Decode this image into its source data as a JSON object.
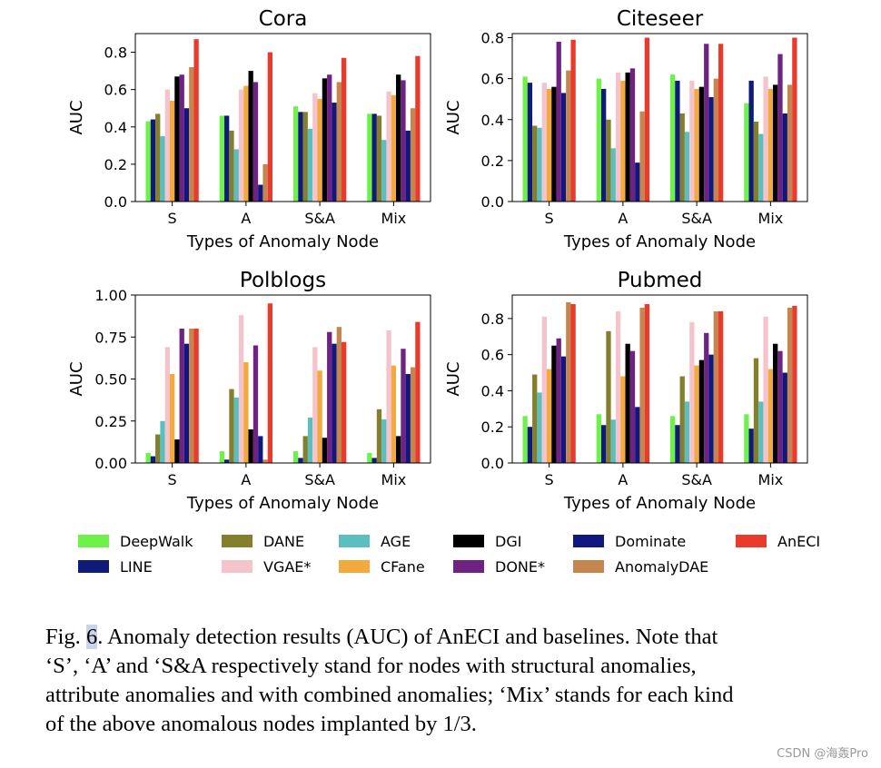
{
  "chart_data": [
    {
      "type": "bar",
      "title": "Cora",
      "xlabel": "Types of Anomaly Node",
      "ylabel": "AUC",
      "ylim": [
        0,
        0.9
      ],
      "yticks": [
        "0.0",
        "0.2",
        "0.4",
        "0.6",
        "0.8"
      ],
      "categories": [
        "S",
        "A",
        "S&A",
        "Mix"
      ],
      "values": [
        [
          0.43,
          0.44,
          0.47,
          0.35,
          0.6,
          0.54,
          0.67,
          0.68,
          0.5,
          0.72,
          0.87
        ],
        [
          0.46,
          0.46,
          0.38,
          0.28,
          0.6,
          0.62,
          0.7,
          0.64,
          0.09,
          0.2,
          0.8
        ],
        [
          0.51,
          0.48,
          0.48,
          0.39,
          0.58,
          0.55,
          0.66,
          0.68,
          0.53,
          0.64,
          0.77
        ],
        [
          0.47,
          0.47,
          0.46,
          0.33,
          0.59,
          0.57,
          0.68,
          0.65,
          0.38,
          0.5,
          0.78
        ]
      ]
    },
    {
      "type": "bar",
      "title": "Citeseer",
      "xlabel": "Types of Anomaly Node",
      "ylabel": "AUC",
      "ylim": [
        0,
        0.82
      ],
      "yticks": [
        "0.0",
        "0.2",
        "0.4",
        "0.6",
        "0.8"
      ],
      "categories": [
        "S",
        "A",
        "S&A",
        "Mix"
      ],
      "values": [
        [
          0.61,
          0.58,
          0.37,
          0.36,
          0.58,
          0.55,
          0.56,
          0.78,
          0.53,
          0.64,
          0.79
        ],
        [
          0.6,
          0.55,
          0.4,
          0.26,
          0.63,
          0.59,
          0.63,
          0.65,
          0.19,
          0.44,
          0.8
        ],
        [
          0.62,
          0.59,
          0.43,
          0.34,
          0.59,
          0.55,
          0.56,
          0.77,
          0.51,
          0.6,
          0.77
        ],
        [
          0.48,
          0.59,
          0.39,
          0.33,
          0.61,
          0.55,
          0.57,
          0.72,
          0.43,
          0.57,
          0.8
        ]
      ]
    },
    {
      "type": "bar",
      "title": "Polblogs",
      "xlabel": "Types of Anomaly Node",
      "ylabel": "AUC",
      "ylim": [
        0,
        1.0
      ],
      "yticks": [
        "0.00",
        "0.25",
        "0.50",
        "0.75",
        "1.00"
      ],
      "categories": [
        "S",
        "A",
        "S&A",
        "Mix"
      ],
      "values": [
        [
          0.06,
          0.04,
          0.17,
          0.25,
          0.69,
          0.53,
          0.14,
          0.8,
          0.71,
          0.8,
          0.8
        ],
        [
          0.07,
          0.02,
          0.44,
          0.39,
          0.88,
          0.6,
          0.2,
          0.7,
          0.16,
          0.02,
          0.95
        ],
        [
          0.07,
          0.03,
          0.16,
          0.27,
          0.69,
          0.55,
          0.15,
          0.78,
          0.71,
          0.81,
          0.72
        ],
        [
          0.06,
          0.03,
          0.32,
          0.26,
          0.79,
          0.58,
          0.16,
          0.68,
          0.53,
          0.57,
          0.84
        ]
      ]
    },
    {
      "type": "bar",
      "title": "Pubmed",
      "xlabel": "Types of Anomaly Node",
      "ylabel": "AUC",
      "ylim": [
        0,
        0.93
      ],
      "yticks": [
        "0.0",
        "0.2",
        "0.4",
        "0.6",
        "0.8"
      ],
      "categories": [
        "S",
        "A",
        "S&A",
        "Mix"
      ],
      "values": [
        [
          0.26,
          0.2,
          0.49,
          0.39,
          0.81,
          0.52,
          0.65,
          0.69,
          0.59,
          0.89,
          0.88
        ],
        [
          0.27,
          0.21,
          0.73,
          0.24,
          0.84,
          0.48,
          0.66,
          0.62,
          0.31,
          0.86,
          0.88
        ],
        [
          0.26,
          0.21,
          0.48,
          0.34,
          0.78,
          0.54,
          0.57,
          0.72,
          0.6,
          0.84,
          0.84
        ],
        [
          0.27,
          0.19,
          0.58,
          0.34,
          0.81,
          0.52,
          0.66,
          0.62,
          0.5,
          0.86,
          0.87
        ]
      ]
    }
  ],
  "series": [
    {
      "name": "DeepWalk",
      "color": "#6ef24a"
    },
    {
      "name": "LINE",
      "color": "#101a78"
    },
    {
      "name": "DANE",
      "color": "#847f2d"
    },
    {
      "name": "AGE",
      "color": "#5abfbe"
    },
    {
      "name": "VGAE*",
      "color": "#f4c3cc"
    },
    {
      "name": "CFane",
      "color": "#f2a93d"
    },
    {
      "name": "DGI",
      "color": "#000000"
    },
    {
      "name": "DONE*",
      "color": "#6e2383"
    },
    {
      "name": "Dominate",
      "color": "#10187f"
    },
    {
      "name": "AnomalyDAE",
      "color": "#c5854f"
    },
    {
      "name": "AnECI",
      "color": "#e93a2c"
    }
  ],
  "caption": {
    "fig_label": "Fig.",
    "fig_number": "6",
    "line1_rest": ".  Anomaly detection results (AUC) of AnECI and baselines. Note that",
    "line2": "‘S’, ‘A’ and ‘S&A respectively stand for nodes with structural anomalies,",
    "line3": "attribute anomalies and with combined anomalies; ‘Mix’ stands for each kind",
    "line4": "of the above anomalous nodes implanted by 1/3."
  },
  "watermark": "CSDN @海轰Pro"
}
